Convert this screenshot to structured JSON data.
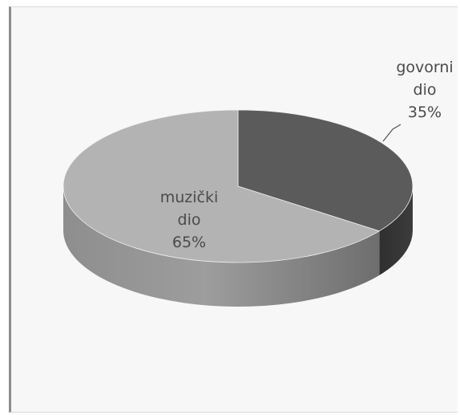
{
  "chart_data": {
    "type": "pie",
    "style": "3d",
    "slices": [
      {
        "label_lines": [
          "govorni",
          "dio"
        ],
        "value": 35,
        "value_label": "35%",
        "color": "#5b5b5b"
      },
      {
        "label_lines": [
          "muzički",
          "dio"
        ],
        "value": 65,
        "value_label": "65%",
        "color": "#b3b3b3"
      }
    ],
    "legend": "none"
  }
}
